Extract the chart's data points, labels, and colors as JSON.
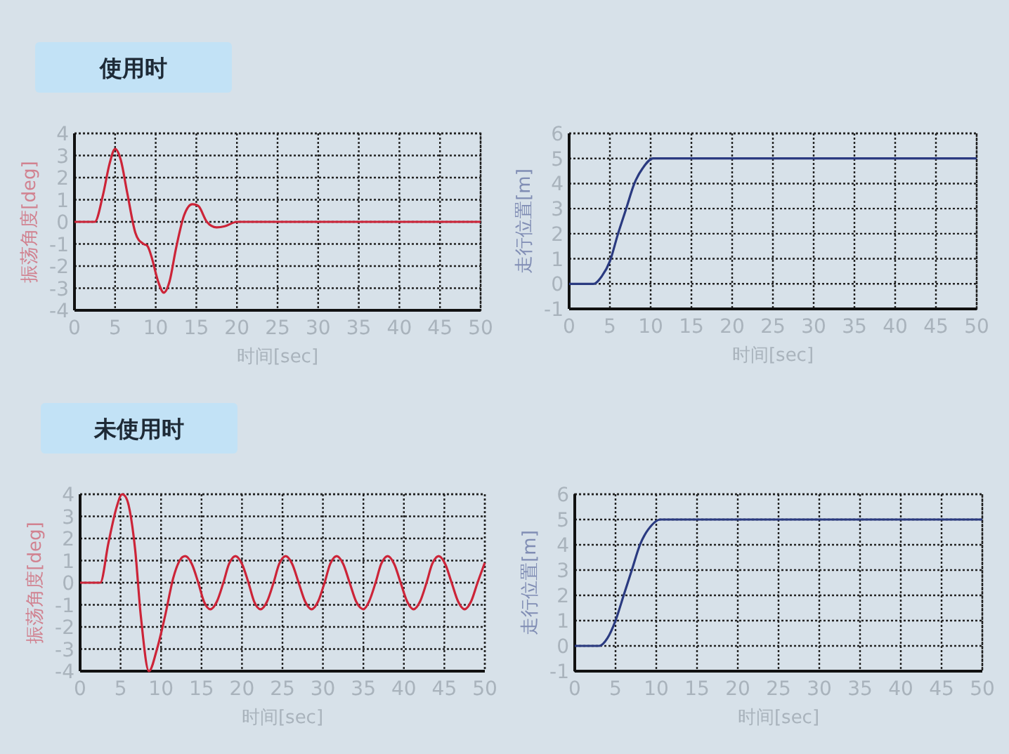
{
  "chart_data": [
    {
      "type": "line",
      "title": "使用时",
      "xlabel": "时间[sec]",
      "ylabel": "振荡角度[deg]",
      "color": "#cc2438",
      "xlim": [
        0,
        50
      ],
      "ylim": [
        -4,
        4
      ],
      "xticks": [
        0,
        5,
        10,
        15,
        20,
        25,
        30,
        35,
        40,
        45,
        50
      ],
      "yticks": [
        -4,
        -3,
        -2,
        -1,
        0,
        1,
        2,
        3,
        4
      ],
      "grid": true,
      "x": [
        0,
        2.5,
        3.5,
        4.3,
        5,
        5.7,
        6.5,
        7.5,
        8.5,
        9,
        9.5,
        10.3,
        11,
        11.7,
        12.5,
        13.5,
        14.5,
        15.3,
        16.3,
        17.5,
        18.5,
        20,
        50
      ],
      "values": [
        0,
        0,
        1.2,
        2.6,
        3.3,
        2.8,
        1.3,
        -0.5,
        -1,
        -1.1,
        -1.6,
        -2.7,
        -3.2,
        -2.7,
        -1.2,
        0.3,
        0.8,
        0.7,
        0,
        -0.25,
        -0.2,
        0,
        0
      ]
    },
    {
      "type": "line",
      "xlabel": "时间[sec]",
      "ylabel": "走行位置[m]",
      "color": "#2a3a80",
      "xlim": [
        0,
        50
      ],
      "ylim": [
        -1,
        6
      ],
      "xticks": [
        0,
        5,
        10,
        15,
        20,
        25,
        30,
        35,
        40,
        45,
        50
      ],
      "yticks": [
        -1,
        0,
        1,
        2,
        3,
        4,
        5,
        6
      ],
      "grid": true,
      "x": [
        0,
        3,
        4,
        5,
        6,
        7,
        8,
        9,
        10.3,
        50
      ],
      "values": [
        0,
        0,
        0.3,
        0.9,
        2,
        3,
        4,
        4.6,
        5,
        5
      ]
    },
    {
      "type": "line",
      "title": "未使用时",
      "xlabel": "时间[sec]",
      "ylabel": "振荡角度[deg]",
      "color": "#cc2438",
      "xlim": [
        0,
        50
      ],
      "ylim": [
        -4,
        4
      ],
      "xticks": [
        0,
        5,
        10,
        15,
        20,
        25,
        30,
        35,
        40,
        45,
        50
      ],
      "yticks": [
        -4,
        -3,
        -2,
        -1,
        0,
        1,
        2,
        3,
        4
      ],
      "grid": true,
      "x": [
        0,
        2.5,
        3.5,
        4.5,
        5.2,
        6,
        6.8,
        7.5,
        8.5,
        9.5,
        10.5,
        11.5,
        12.3,
        13,
        13.8,
        14.6,
        15.3,
        16.1,
        16.9,
        17.7,
        18.4,
        19.2,
        20,
        20.8,
        21.5,
        22.3,
        23.1,
        23.9,
        24.6,
        25.4,
        26.2,
        27,
        27.8,
        28.6,
        29.4,
        30.2,
        30.9,
        31.7,
        32.5,
        33.3,
        34.1,
        35,
        35.7,
        36.5,
        37.2,
        38,
        38.8,
        39.6,
        40.4,
        41.2,
        42,
        42.8,
        43.5,
        44.3,
        45.1,
        45.9,
        46.7,
        47.5,
        48.3,
        49.1,
        50
      ],
      "values": [
        0,
        0,
        1.8,
        3.4,
        4,
        3.5,
        1.5,
        -1.5,
        -4,
        -3,
        -1.5,
        0.2,
        1,
        1.2,
        0.85,
        0,
        -0.85,
        -1.2,
        -0.85,
        0,
        0.85,
        1.2,
        0.85,
        0,
        -0.85,
        -1.2,
        -0.85,
        0,
        0.85,
        1.2,
        0.85,
        0,
        -0.85,
        -1.2,
        -0.85,
        0,
        0.85,
        1.2,
        0.85,
        0,
        -0.85,
        -1.2,
        -0.85,
        0,
        0.85,
        1.2,
        0.85,
        0,
        -0.85,
        -1.2,
        -0.85,
        0,
        0.85,
        1.2,
        0.85,
        0,
        -0.85,
        -1.2,
        -0.85,
        0,
        0.9
      ]
    },
    {
      "type": "line",
      "xlabel": "时间[sec]",
      "ylabel": "走行位置[m]",
      "color": "#2a3a80",
      "xlim": [
        0,
        50
      ],
      "ylim": [
        -1,
        6
      ],
      "xticks": [
        0,
        5,
        10,
        15,
        20,
        25,
        30,
        35,
        40,
        45,
        50
      ],
      "yticks": [
        -1,
        0,
        1,
        2,
        3,
        4,
        5,
        6
      ],
      "grid": true,
      "x": [
        0,
        3,
        4,
        5,
        6,
        7,
        8,
        9,
        10.5,
        50
      ],
      "values": [
        0,
        0,
        0.3,
        1,
        2,
        3,
        4,
        4.6,
        5,
        5
      ]
    }
  ]
}
